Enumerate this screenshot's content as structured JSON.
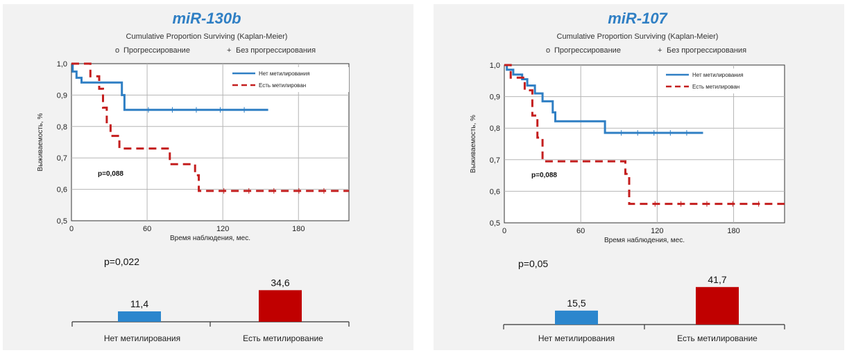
{
  "panels": [
    {
      "title": "miR-130b",
      "subtitle": "Cumulative Proportion Surviving (Kaplan-Meier)",
      "legend_top": {
        "marker1": "o",
        "label1": "Прогрессирование",
        "marker2": "+",
        "label2": "Без прогрессирования"
      },
      "inner_legend": [
        "Нет метилирования",
        "Есть метилирован"
      ],
      "km_pvalue": "p=0,088",
      "bar_pvalue": "p=0,022",
      "bar_categories": [
        "Нет метилирования",
        "Есть метилирование"
      ],
      "bar_value_labels": [
        "11,4",
        "34,6"
      ]
    },
    {
      "title": "miR-107",
      "subtitle": "Cumulative Proportion Surviving (Kaplan-Meier)",
      "legend_top": {
        "marker1": "o",
        "label1": "Прогрессирование",
        "marker2": "+",
        "label2": "Без прогрессирования"
      },
      "inner_legend": [
        "Нет метилирования",
        "Есть метилирован"
      ],
      "km_pvalue": "p=0,088",
      "bar_pvalue": "p=0,05",
      "bar_categories": [
        "Нет метилирования",
        "Есть метилирование"
      ],
      "bar_value_labels": [
        "15,5",
        "41,7"
      ]
    }
  ],
  "chart_data": [
    {
      "type": "line",
      "title": "Cumulative Proportion Surviving (Kaplan-Meier)",
      "xlabel": "Время наблюдения, мес.",
      "ylabel": "Выживаемость, %",
      "xlim": [
        0,
        220
      ],
      "ylim": [
        0.5,
        1.0
      ],
      "xticks": [
        0,
        60,
        120,
        180
      ],
      "yticks": [
        "0,5",
        "0,6",
        "0,7",
        "0,8",
        "0,9",
        "1,0"
      ],
      "grid": true,
      "legend_position": "top-right",
      "series": [
        {
          "name": "Нет метилирования",
          "color": "#2f7fc4",
          "style": "solid",
          "x": [
            0,
            1,
            1,
            4,
            4,
            8,
            8,
            40,
            40,
            42,
            42,
            156
          ],
          "y": [
            1.0,
            1.0,
            0.975,
            0.975,
            0.955,
            0.955,
            0.94,
            0.94,
            0.9,
            0.9,
            0.853,
            0.853
          ]
        },
        {
          "name": "Есть метилирован",
          "color": "#c41e1e",
          "style": "dashed",
          "x": [
            0,
            15,
            15,
            22,
            22,
            25,
            25,
            28,
            28,
            31,
            31,
            38,
            38,
            78,
            78,
            98,
            98,
            101,
            101,
            220
          ],
          "y": [
            1.0,
            1.0,
            0.96,
            0.96,
            0.92,
            0.92,
            0.86,
            0.86,
            0.81,
            0.81,
            0.77,
            0.77,
            0.73,
            0.73,
            0.68,
            0.68,
            0.645,
            0.645,
            0.595,
            0.595
          ]
        }
      ],
      "annotation": "p=0,088"
    },
    {
      "type": "bar",
      "categories": [
        "Нет метилирования",
        "Есть метилирование"
      ],
      "values": [
        11.4,
        34.6
      ],
      "value_labels": [
        "11,4",
        "34,6"
      ],
      "colors": [
        "#2b86cd",
        "#c00000"
      ],
      "annotation": "p=0,022"
    },
    {
      "type": "line",
      "title": "Cumulative Proportion Surviving (Kaplan-Meier)",
      "xlabel": "Время наблюдения, мес.",
      "ylabel": "Выживаемость, %",
      "xlim": [
        0,
        220
      ],
      "ylim": [
        0.5,
        1.0
      ],
      "xticks": [
        0,
        60,
        120,
        180
      ],
      "yticks": [
        "0,5",
        "0,6",
        "0,7",
        "0,8",
        "0,9",
        "1,0"
      ],
      "grid": true,
      "legend_position": "top-right",
      "series": [
        {
          "name": "Нет метилирования",
          "color": "#2f7fc4",
          "style": "solid",
          "x": [
            0,
            2,
            2,
            7,
            7,
            14,
            14,
            18,
            18,
            24,
            24,
            30,
            30,
            38,
            38,
            40,
            40,
            79,
            79,
            156
          ],
          "y": [
            1.0,
            1.0,
            0.985,
            0.985,
            0.97,
            0.97,
            0.955,
            0.955,
            0.935,
            0.935,
            0.91,
            0.91,
            0.885,
            0.885,
            0.85,
            0.85,
            0.822,
            0.822,
            0.785,
            0.785
          ]
        },
        {
          "name": "Есть метилирован",
          "color": "#c41e1e",
          "style": "dashed",
          "x": [
            0,
            5,
            5,
            16,
            16,
            22,
            22,
            26,
            26,
            30,
            30,
            95,
            95,
            98,
            98,
            220
          ],
          "y": [
            1.0,
            1.0,
            0.96,
            0.96,
            0.92,
            0.92,
            0.84,
            0.84,
            0.77,
            0.77,
            0.695,
            0.695,
            0.655,
            0.655,
            0.56,
            0.56
          ]
        }
      ],
      "annotation": "p=0,088"
    },
    {
      "type": "bar",
      "categories": [
        "Нет метилирования",
        "Есть метилирование"
      ],
      "values": [
        15.5,
        41.7
      ],
      "value_labels": [
        "15,5",
        "41,7"
      ],
      "colors": [
        "#2b86cd",
        "#c00000"
      ],
      "annotation": "p=0,05"
    }
  ]
}
